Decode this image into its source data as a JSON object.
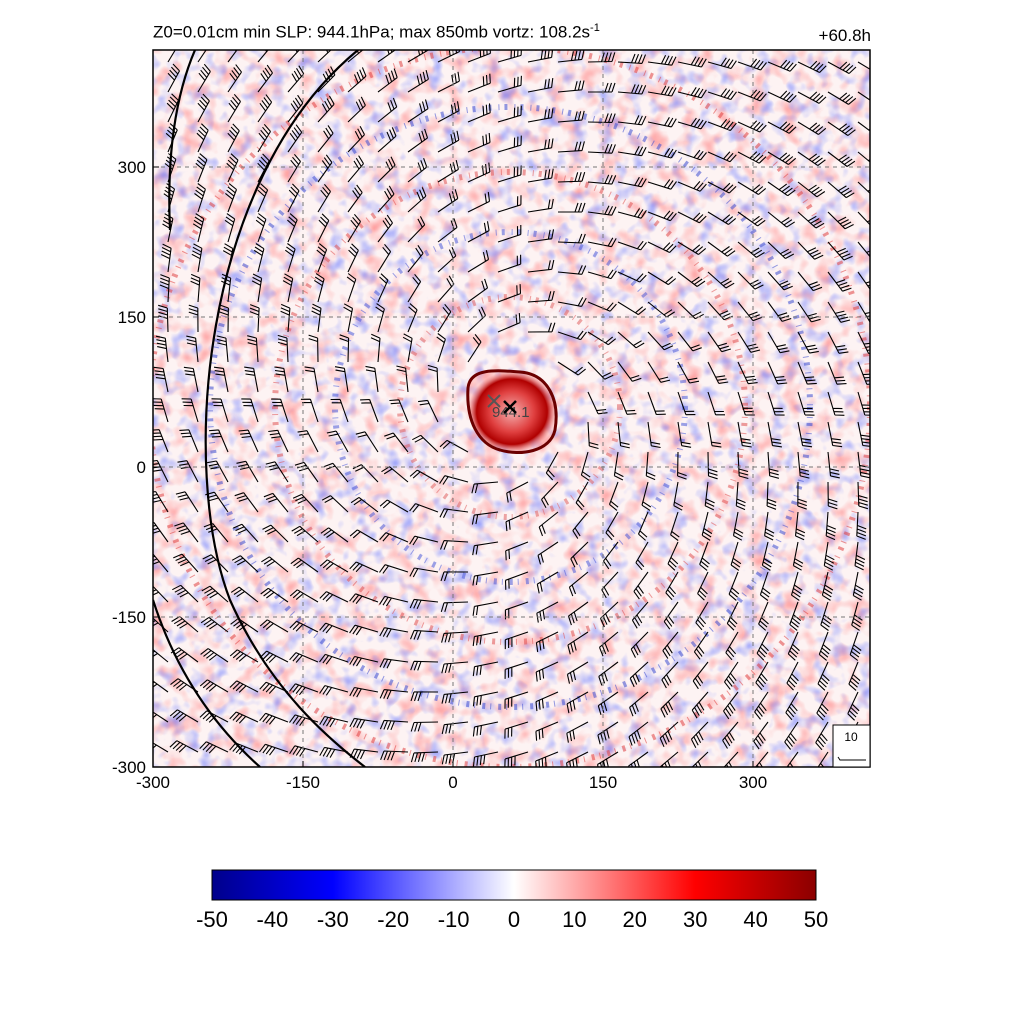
{
  "header": {
    "title_main": "Z0=0.01cm  min SLP: 944.1hPa; max 850mb vortz: 108.2s",
    "title_sup": "-1",
    "time_label": "+60.8h"
  },
  "center": {
    "x": 57,
    "y": 60,
    "label": "944.1"
  },
  "legend": {
    "vector_ref": "10"
  },
  "colors": {
    "negative_max": "#00008b",
    "negative": "#0000ff",
    "zero": "#ffffff",
    "positive": "#ff0000",
    "positive_max": "#8b0000"
  },
  "chart_data": {
    "type": "heatmap",
    "variable": "850mb relative vorticity with wind barbs and SLP contours",
    "x_ticks": [
      -300,
      -150,
      0,
      150,
      300
    ],
    "y_ticks": [
      -300,
      -150,
      0,
      150,
      300
    ],
    "xlim": [
      -300,
      417
    ],
    "ylim": [
      -300,
      417
    ],
    "grid": true,
    "colorbar": {
      "ticks": [
        -50,
        -40,
        -30,
        -20,
        -10,
        0,
        10,
        20,
        30,
        40,
        50
      ],
      "range": [
        -50,
        50
      ]
    }
  }
}
